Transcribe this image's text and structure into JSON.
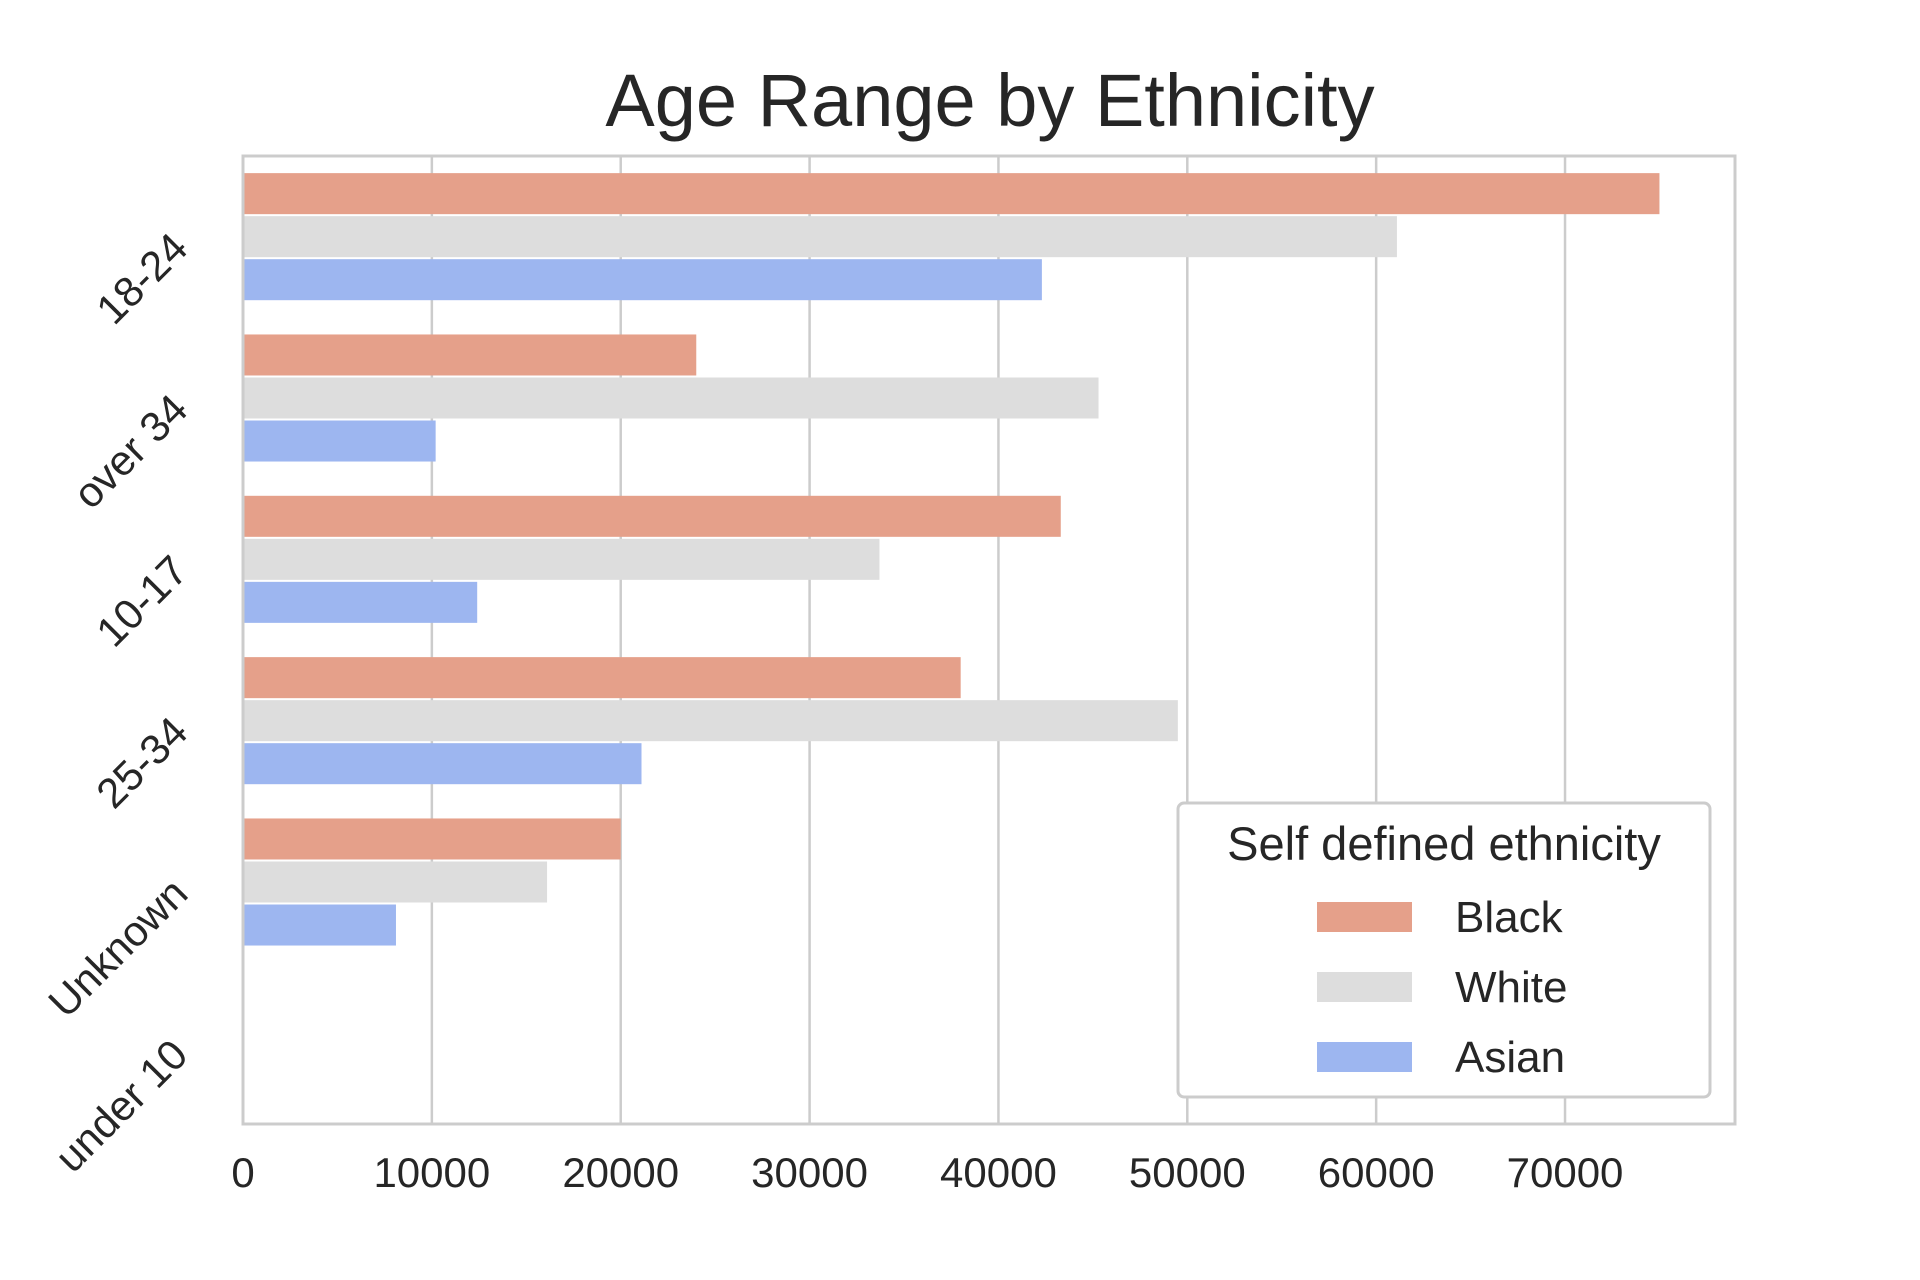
{
  "chart_data": {
    "type": "bar",
    "orientation": "horizontal",
    "title": "Age Range by Ethnicity",
    "xlabel": "",
    "ylabel": "",
    "categories": [
      "18-24",
      "over 34",
      "10-17",
      "25-34",
      "Unknown",
      "under 10"
    ],
    "series": [
      {
        "name": "Black",
        "color": "#e5a08a",
        "values": [
          75000,
          24000,
          43300,
          38000,
          20000,
          0
        ]
      },
      {
        "name": "White",
        "color": "#dddddd",
        "values": [
          61100,
          45300,
          33700,
          49500,
          16100,
          0
        ]
      },
      {
        "name": "Asian",
        "color": "#9db6f0",
        "values": [
          42300,
          10200,
          12400,
          21100,
          8100,
          0
        ]
      }
    ],
    "xlim": [
      0,
      79000
    ],
    "x_ticks": [
      0,
      10000,
      20000,
      30000,
      40000,
      50000,
      60000,
      70000
    ],
    "x_tick_labels": [
      "0",
      "10000",
      "20000",
      "30000",
      "40000",
      "50000",
      "60000",
      "70000"
    ],
    "grid": "vertical",
    "legend": {
      "title": "Self defined ethnicity",
      "position": "lower-right"
    }
  }
}
